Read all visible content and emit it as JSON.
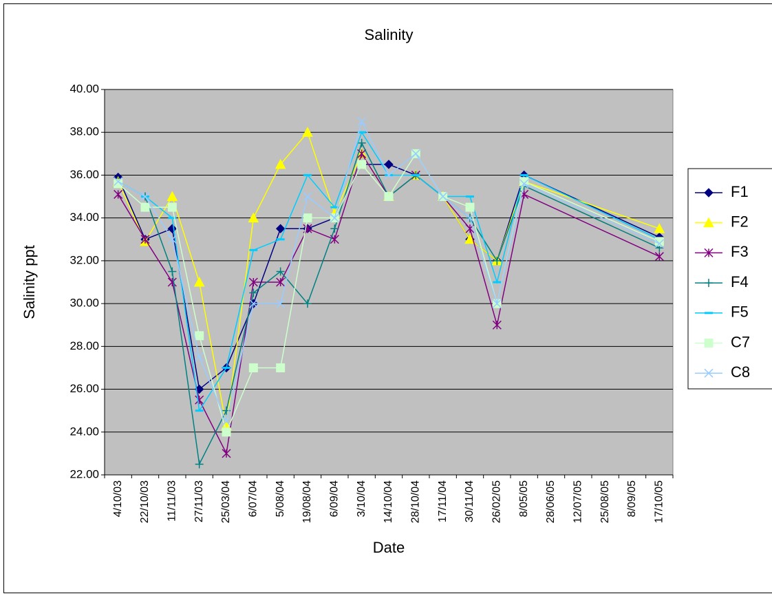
{
  "chart_data": {
    "type": "line",
    "title": "Salinity",
    "xlabel": "Date",
    "ylabel": "Salinity ppt",
    "categories": [
      "4/10/03",
      "22/10/03",
      "11/11/03",
      "27/11/03",
      "25/03/04",
      "6/07/04",
      "5/08/04",
      "19/08/04",
      "6/09/04",
      "3/10/04",
      "14/10/04",
      "28/10/04",
      "17/11/04",
      "30/11/04",
      "26/02/05",
      "8/05/05",
      "28/06/05",
      "12/07/05",
      "25/08/05",
      "8/09/05",
      "17/10/05"
    ],
    "series": [
      {
        "name": "F1",
        "color": "#000080",
        "marker": "diamond",
        "values": [
          35.9,
          33,
          33.5,
          26,
          27,
          30,
          33.5,
          33.5,
          34,
          36.5,
          36.5,
          36,
          35,
          33,
          32,
          36,
          null,
          null,
          null,
          null,
          33.1
        ]
      },
      {
        "name": "F2",
        "color": "#ffff00",
        "marker": "triangle",
        "values": [
          35.7,
          32.9,
          35,
          31,
          24.3,
          34,
          36.5,
          38,
          34.2,
          37,
          35,
          36,
          35,
          33,
          32,
          35.7,
          null,
          null,
          null,
          null,
          33.5
        ]
      },
      {
        "name": "F3",
        "color": "#800080",
        "marker": "star",
        "values": [
          35.1,
          33,
          31,
          25.5,
          23,
          31,
          31,
          33.5,
          33,
          37,
          35,
          36,
          35,
          33.5,
          29,
          35.1,
          null,
          null,
          null,
          null,
          32.2
        ]
      },
      {
        "name": "F4",
        "color": "#008080",
        "marker": "plus",
        "values": [
          35.7,
          35,
          31.5,
          22.5,
          25,
          30.5,
          31.5,
          30,
          33.5,
          37.5,
          35,
          36,
          35,
          34,
          32,
          35.5,
          null,
          null,
          null,
          null,
          32.6
        ]
      },
      {
        "name": "F5",
        "color": "#00ccff",
        "marker": "dash",
        "values": [
          35.7,
          35,
          34,
          25,
          27,
          32.5,
          33,
          36,
          34.5,
          38,
          36,
          36,
          35,
          35,
          31,
          36,
          null,
          null,
          null,
          null,
          33
        ]
      },
      {
        "name": "C7",
        "color": "#ccffcc",
        "marker": "square",
        "values": [
          35.6,
          34.5,
          34.5,
          28.5,
          24,
          27,
          27,
          34,
          34,
          36.5,
          35,
          37,
          35,
          34.5,
          30,
          35.7,
          null,
          null,
          null,
          null,
          32.9
        ]
      },
      {
        "name": "C8",
        "color": "#99ccff",
        "marker": "x",
        "values": [
          35.7,
          35,
          33,
          27.5,
          24.5,
          30,
          30,
          35,
          34,
          38.5,
          36,
          37,
          35,
          34,
          30,
          35.6,
          null,
          null,
          null,
          null,
          32.8
        ]
      }
    ],
    "span_gaps": true,
    "ylim": [
      22,
      40
    ],
    "yticks": [
      {
        "value": 22,
        "label": "22.00"
      },
      {
        "value": 24,
        "label": "24.00"
      },
      {
        "value": 26,
        "label": "26.00"
      },
      {
        "value": 28,
        "label": "28.00"
      },
      {
        "value": 30,
        "label": "30.00"
      },
      {
        "value": 32,
        "label": "32.00"
      },
      {
        "value": 34,
        "label": "34.00"
      },
      {
        "value": 36,
        "label": "36.00"
      },
      {
        "value": 38,
        "label": "38.00"
      },
      {
        "value": 40,
        "label": "40.00"
      }
    ],
    "grid": true,
    "legend": "right",
    "plot_background": "#c0c0c0"
  }
}
